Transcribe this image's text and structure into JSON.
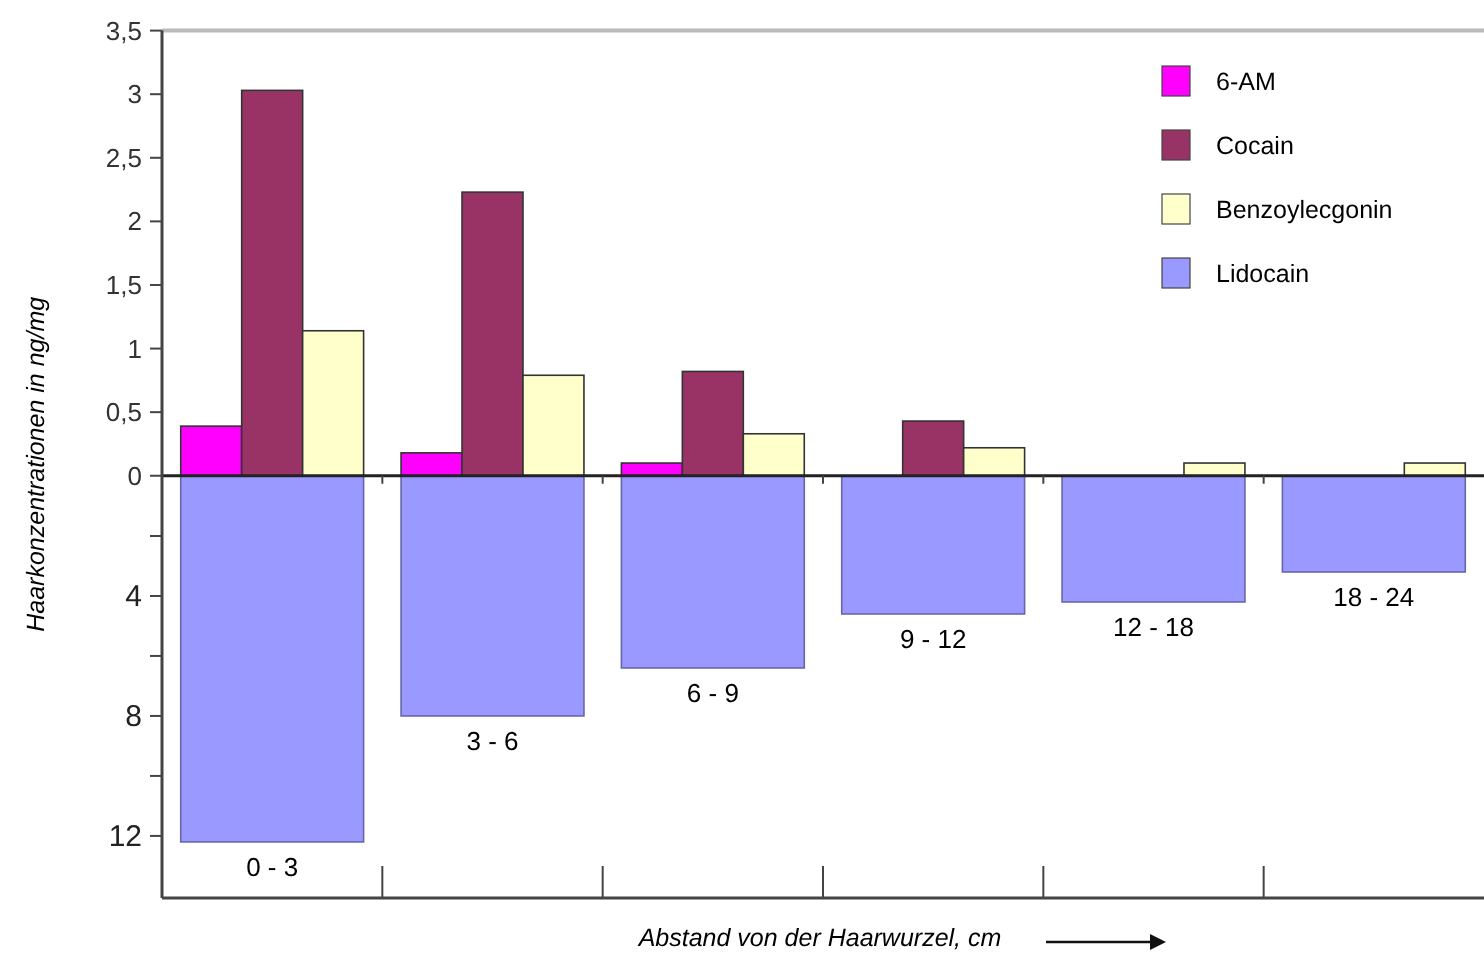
{
  "chart_data": {
    "type": "bar",
    "xlabel": "Abstand von der Haarwurzel, cm",
    "ylabel": "Haarkonzentrationen in ng/mg",
    "categories": [
      "0 - 3",
      "3 - 6",
      "6 - 9",
      "9 - 12",
      "12 - 18",
      "18 - 24"
    ],
    "series": [
      {
        "name": "6-AM",
        "color": "#ff00ff",
        "values": [
          0.39,
          0.18,
          0.1,
          null,
          null,
          null
        ]
      },
      {
        "name": "Cocain",
        "color": "#993366",
        "values": [
          3.03,
          2.23,
          0.82,
          0.43,
          null,
          null
        ]
      },
      {
        "name": "Benzoylecgonin",
        "color": "#ffffcc",
        "values": [
          1.14,
          0.79,
          0.33,
          0.22,
          0.1,
          0.1
        ]
      },
      {
        "name": "Lidocain",
        "color": "#9999ff",
        "axis": "y2",
        "values": [
          12.2,
          8.0,
          6.4,
          4.6,
          4.2,
          3.2
        ]
      }
    ],
    "ylim": [
      -3.32,
      3.5
    ],
    "yticks": [
      0,
      {
        "value": 0.5,
        "label": "0,5"
      },
      1,
      {
        "value": 1.5,
        "label": "1,5"
      },
      2,
      {
        "value": 2.5,
        "label": "2,5"
      },
      3,
      {
        "value": 3.5,
        "label": "3,5"
      }
    ],
    "y2lim": [
      14.07,
      -14.85
    ],
    "y2ticks": [
      {
        "value": 2,
        "label": null
      },
      4,
      {
        "value": 6,
        "label": null
      },
      8,
      {
        "value": 10,
        "label": null
      },
      12
    ],
    "legend": "top right"
  }
}
